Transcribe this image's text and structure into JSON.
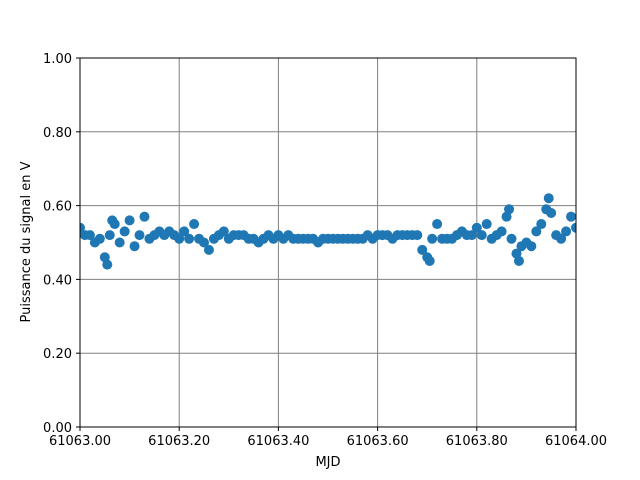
{
  "chart_data": {
    "type": "scatter",
    "x_label": "MJD",
    "y_label": "Puissance du signal en V",
    "color": "#1f77b4",
    "grid": true,
    "xlim": [
      61063.0,
      61064.0
    ],
    "xticks": [
      {
        "value": 61063.0,
        "label": "61063.00"
      },
      {
        "value": 61063.2,
        "label": "61063.20"
      },
      {
        "value": 61063.4,
        "label": "61063.40"
      },
      {
        "value": 61063.6,
        "label": "61063.60"
      },
      {
        "value": 61063.8,
        "label": "61063.80"
      },
      {
        "value": 61064.0,
        "label": "61064.00"
      }
    ],
    "ylim": [
      0,
      1
    ],
    "yticks": [
      {
        "value": 0,
        "label": "0.00"
      },
      {
        "value": 0.2,
        "label": "0.20"
      },
      {
        "value": 0.4,
        "label": "0.40"
      },
      {
        "value": 0.6,
        "label": "0.60"
      },
      {
        "value": 0.8,
        "label": "0.80"
      },
      {
        "value": 1,
        "label": "1.00"
      }
    ],
    "x": [
      61063.0,
      61063.01,
      61063.02,
      61063.03,
      61063.04,
      61063.05,
      61063.055,
      61063.06,
      61063.065,
      61063.07,
      61063.08,
      61063.09,
      61063.1,
      61063.11,
      61063.12,
      61063.13,
      61063.14,
      61063.15,
      61063.16,
      61063.17,
      61063.18,
      61063.19,
      61063.2,
      61063.21,
      61063.22,
      61063.23,
      61063.24,
      61063.25,
      61063.26,
      61063.27,
      61063.28,
      61063.29,
      61063.3,
      61063.31,
      61063.32,
      61063.33,
      61063.34,
      61063.35,
      61063.36,
      61063.37,
      61063.38,
      61063.39,
      61063.4,
      61063.41,
      61063.42,
      61063.43,
      61063.44,
      61063.45,
      61063.46,
      61063.47,
      61063.48,
      61063.49,
      61063.5,
      61063.51,
      61063.52,
      61063.53,
      61063.54,
      61063.55,
      61063.56,
      61063.57,
      61063.58,
      61063.59,
      61063.6,
      61063.61,
      61063.62,
      61063.63,
      61063.64,
      61063.65,
      61063.66,
      61063.67,
      61063.68,
      61063.69,
      61063.7,
      61063.705,
      61063.71,
      61063.72,
      61063.73,
      61063.74,
      61063.75,
      61063.76,
      61063.77,
      61063.78,
      61063.79,
      61063.8,
      61063.81,
      61063.82,
      61063.83,
      61063.84,
      61063.85,
      61063.86,
      61063.865,
      61063.87,
      61063.88,
      61063.885,
      61063.89,
      61063.9,
      61063.91,
      61063.92,
      61063.93,
      61063.94,
      61063.945,
      61063.95,
      61063.96,
      61063.97,
      61063.98,
      61063.99,
      61064.0
    ],
    "values": [
      0.54,
      0.52,
      0.52,
      0.5,
      0.51,
      0.46,
      0.44,
      0.52,
      0.56,
      0.55,
      0.5,
      0.53,
      0.56,
      0.49,
      0.52,
      0.57,
      0.51,
      0.52,
      0.53,
      0.52,
      0.53,
      0.52,
      0.51,
      0.53,
      0.51,
      0.55,
      0.51,
      0.5,
      0.48,
      0.51,
      0.52,
      0.53,
      0.51,
      0.52,
      0.52,
      0.52,
      0.51,
      0.51,
      0.5,
      0.51,
      0.52,
      0.51,
      0.52,
      0.51,
      0.52,
      0.51,
      0.51,
      0.51,
      0.51,
      0.51,
      0.5,
      0.51,
      0.51,
      0.51,
      0.51,
      0.51,
      0.51,
      0.51,
      0.51,
      0.51,
      0.52,
      0.51,
      0.52,
      0.52,
      0.52,
      0.51,
      0.52,
      0.52,
      0.52,
      0.52,
      0.52,
      0.48,
      0.46,
      0.45,
      0.51,
      0.55,
      0.51,
      0.51,
      0.51,
      0.52,
      0.53,
      0.52,
      0.52,
      0.54,
      0.52,
      0.55,
      0.51,
      0.52,
      0.53,
      0.57,
      0.59,
      0.51,
      0.47,
      0.45,
      0.49,
      0.5,
      0.49,
      0.53,
      0.55,
      0.59,
      0.62,
      0.58,
      0.52,
      0.51,
      0.53,
      0.57,
      0.54
    ]
  }
}
